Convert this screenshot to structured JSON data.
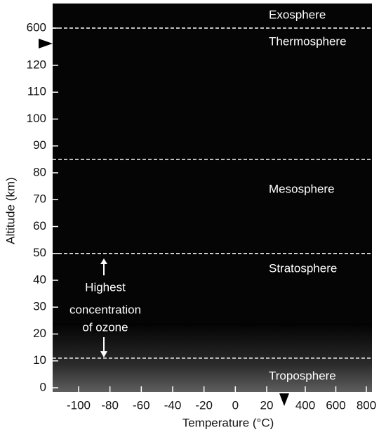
{
  "chart_data": {
    "type": "layers",
    "x_label": "Temperature (°C)",
    "y_label": "Altitude (km)",
    "xlim": [
      -100,
      800
    ],
    "xticks": [
      -100,
      -80,
      -60,
      -40,
      -20,
      0,
      20,
      400,
      600,
      800
    ],
    "ylim": [
      0,
      600
    ],
    "yticks": [
      0,
      10,
      20,
      30,
      40,
      50,
      60,
      70,
      80,
      90,
      100,
      110,
      120,
      600
    ],
    "boundaries": [
      11,
      50,
      85,
      600
    ],
    "layers": [
      "Troposphere",
      "Stratosphere",
      "Mesosphere",
      "Thermosphere",
      "Exosphere"
    ],
    "annotation": [
      "Highest",
      "concentration",
      "of ozone"
    ]
  }
}
